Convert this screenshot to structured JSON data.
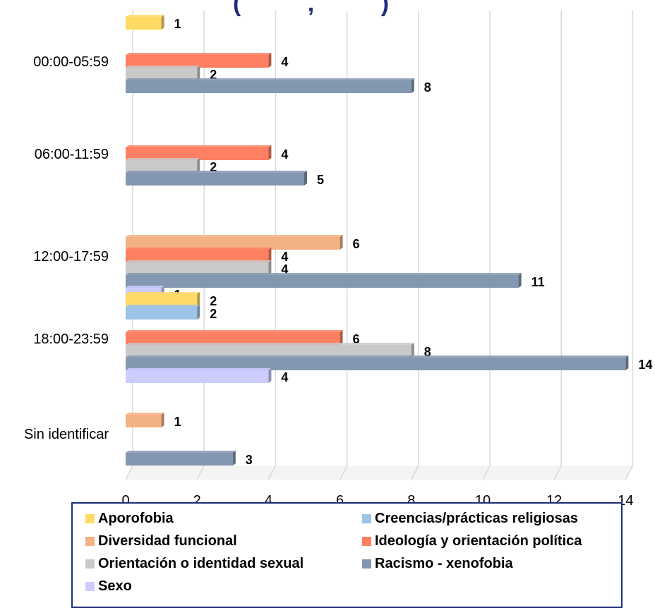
{
  "chart_data": {
    "type": "bar",
    "orientation": "horizontal",
    "title_fragment": "(          ,          )",
    "categories": [
      "00:00-05:59",
      "06:00-11:59",
      "12:00-17:59",
      "18:00-23:59",
      "Sin identificar"
    ],
    "xlim": [
      0,
      14
    ],
    "x_ticks": [
      0,
      2,
      4,
      6,
      8,
      10,
      12,
      14
    ],
    "grid": true,
    "legend_position": "bottom",
    "series": [
      {
        "name": "Aporofobia",
        "color": "#FFD966",
        "values": [
          1,
          0,
          0,
          2,
          0
        ]
      },
      {
        "name": "Creencias/prácticas religiosas",
        "color": "#9DC3E6",
        "values": [
          0,
          0,
          0,
          2,
          0
        ]
      },
      {
        "name": "Diversidad funcional",
        "color": "#F4B183",
        "values": [
          0,
          0,
          6,
          0,
          1
        ]
      },
      {
        "name": "Ideología y orientación política",
        "color": "#FF7F62",
        "values": [
          4,
          4,
          4,
          6,
          0
        ]
      },
      {
        "name": "Orientación o identidad sexual",
        "color": "#C9C9C9",
        "values": [
          2,
          2,
          4,
          8,
          0
        ]
      },
      {
        "name": "Racismo - xenofobia",
        "color": "#8497B0",
        "values": [
          8,
          5,
          11,
          14,
          3
        ]
      },
      {
        "name": "Sexo",
        "color": "#CCCCFF",
        "values": [
          0,
          0,
          1,
          4,
          0
        ]
      }
    ]
  }
}
